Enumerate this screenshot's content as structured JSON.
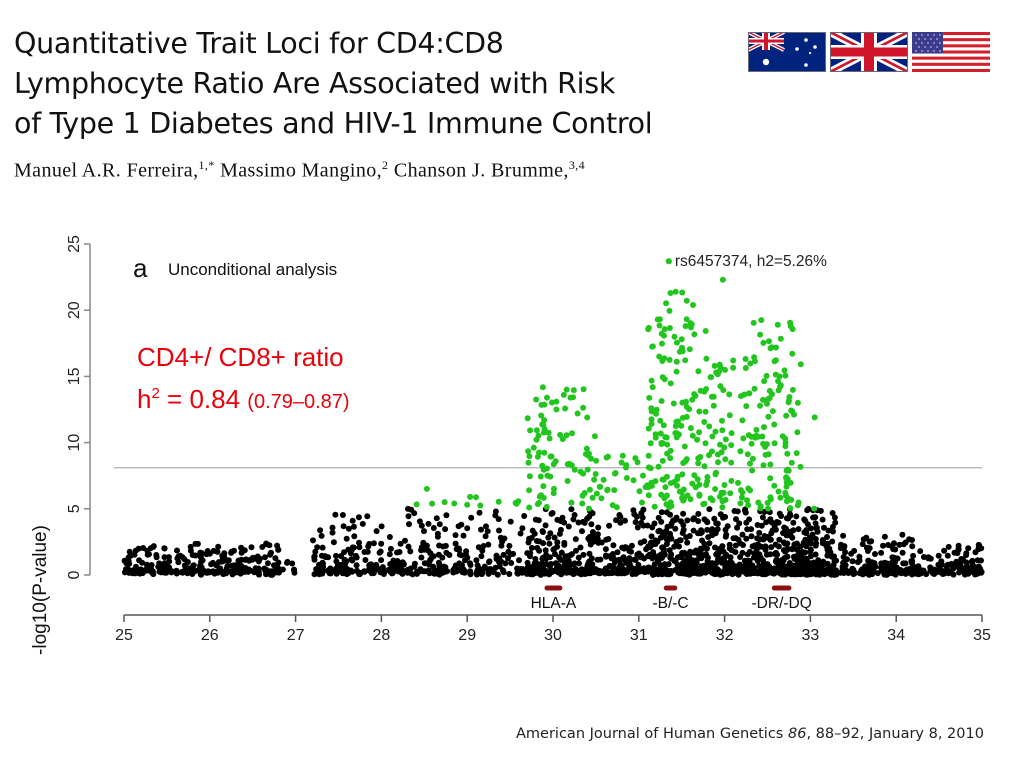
{
  "paper": {
    "title_lines": [
      "Quantitative Trait Loci for CD4:CD8",
      "Lymphocyte Ratio Are Associated with Risk",
      "of Type 1 Diabetes and HIV-1 Immune Control"
    ],
    "authors": [
      {
        "name": "Manuel A.R. Ferreira,",
        "affil": "1,*"
      },
      {
        "name": "Massimo Mangino,",
        "affil": "2"
      },
      {
        "name": "Chanson J. Brumme,",
        "affil": "3,4"
      }
    ],
    "flags": [
      {
        "country": "Australia",
        "icon": "australia-flag-icon"
      },
      {
        "country": "United Kingdom",
        "icon": "uk-flag-icon"
      },
      {
        "country": "United States",
        "icon": "usa-flag-icon"
      }
    ],
    "citation": {
      "journal": "American Journal of Human Genetics",
      "volume": "86",
      "rest": ", 88–92, January 8, 2010"
    }
  },
  "annotation": {
    "line1": "CD4+/ CD8+ ratio",
    "h2_prefix": "h",
    "h2_sup": "2",
    "h2_value": " = 0.84 ",
    "h2_ci": "(0.79–0.87)",
    "color": "#e8000b"
  },
  "chart_data": {
    "type": "scatter",
    "panel_label": "a",
    "title": "Unconditional analysis",
    "xlabel": "",
    "ylabel": "-log10(P-value)",
    "xlim": [
      25,
      35
    ],
    "ylim": [
      0,
      25
    ],
    "x_ticks": [
      25,
      26,
      27,
      28,
      29,
      30,
      31,
      32,
      33,
      34,
      35
    ],
    "y_ticks": [
      0,
      5,
      10,
      15,
      20,
      25
    ],
    "grid": false,
    "significance_threshold": 8.1,
    "colors": {
      "below_threshold_region": "#000000",
      "significant_region": "#22c51e",
      "gene_bar": "#8b1010",
      "threshold_line": "#b0b0b0",
      "axis": "#888888"
    },
    "green_cutoff": 5.0,
    "top_snp": {
      "label": "rs6457374, h2=5.26%",
      "x": 31.35,
      "y": 23.7
    },
    "genes": [
      {
        "label": "HLA-A",
        "start": 29.93,
        "end": 30.08
      },
      {
        "label": "-B/-C",
        "start": 31.32,
        "end": 31.42
      },
      {
        "label": "-DR/-DQ",
        "start": 32.58,
        "end": 32.75
      }
    ],
    "series_regions": [
      {
        "from": 25.0,
        "to": 26.8,
        "n": 260,
        "max": 2.2,
        "seed": 11
      },
      {
        "from": 26.8,
        "to": 27.0,
        "n": 8,
        "max": 0.8,
        "seed": 12
      },
      {
        "from": 27.2,
        "to": 28.3,
        "n": 170,
        "max": 4.5,
        "seed": 13
      },
      {
        "from": 28.3,
        "to": 29.7,
        "n": 200,
        "max": 5.8,
        "seed": 14
      },
      {
        "from": 29.7,
        "to": 30.5,
        "n": 300,
        "max": 14.0,
        "seed": 15
      },
      {
        "from": 30.5,
        "to": 31.1,
        "n": 160,
        "max": 9.0,
        "seed": 16
      },
      {
        "from": 31.1,
        "to": 31.8,
        "n": 420,
        "max": 21.5,
        "seed": 17
      },
      {
        "from": 31.8,
        "to": 32.3,
        "n": 230,
        "max": 16.0,
        "seed": 18
      },
      {
        "from": 32.3,
        "to": 32.9,
        "n": 330,
        "max": 19.0,
        "seed": 19
      },
      {
        "from": 32.9,
        "to": 33.3,
        "n": 160,
        "max": 5.0,
        "seed": 20
      },
      {
        "from": 33.3,
        "to": 34.3,
        "n": 170,
        "max": 3.1,
        "seed": 21
      },
      {
        "from": 34.3,
        "to": 35.0,
        "n": 110,
        "max": 2.2,
        "seed": 22
      }
    ],
    "notable_points": [
      {
        "x": 31.35,
        "y": 23.7
      },
      {
        "x": 31.43,
        "y": 21.4
      },
      {
        "x": 31.37,
        "y": 21.3
      },
      {
        "x": 31.98,
        "y": 22.3
      },
      {
        "x": 31.22,
        "y": 19.3
      },
      {
        "x": 32.62,
        "y": 18.9
      },
      {
        "x": 32.77,
        "y": 18.8
      },
      {
        "x": 31.5,
        "y": 17.8
      },
      {
        "x": 30.16,
        "y": 14.0
      },
      {
        "x": 30.04,
        "y": 13.1
      },
      {
        "x": 30.04,
        "y": 12.5
      },
      {
        "x": 33.05,
        "y": 11.9
      },
      {
        "x": 32.1,
        "y": 16.2
      },
      {
        "x": 32.55,
        "y": 17.2
      },
      {
        "x": 28.53,
        "y": 6.5
      },
      {
        "x": 29.0,
        "y": 5.3
      },
      {
        "x": 28.85,
        "y": 5.4
      }
    ]
  }
}
